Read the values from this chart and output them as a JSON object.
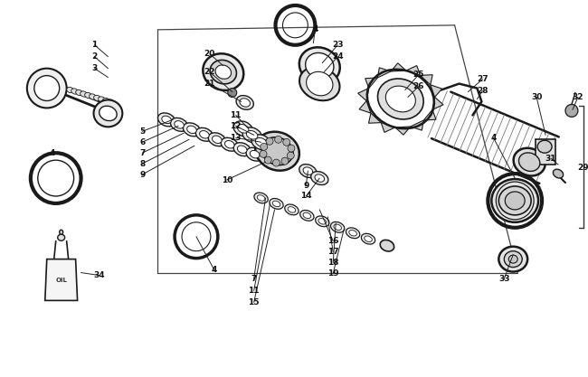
{
  "bg_color": "#ffffff",
  "line_color": "#1a1a1a",
  "fig_width": 6.5,
  "fig_height": 4.17,
  "dpi": 100
}
